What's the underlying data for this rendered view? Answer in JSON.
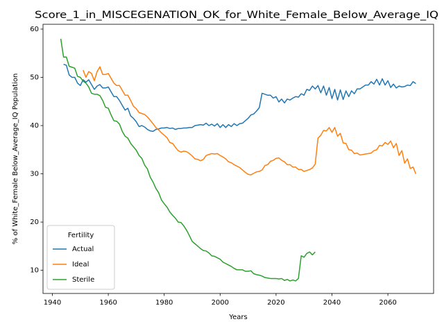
{
  "chart_data": {
    "type": "line",
    "title": "Score_1_in_MISCEGENATION_OK_for_White_Female_Below_Average_IQ",
    "x_label": "Years",
    "y_label": "% of White_Female Below_Average_IQ Population",
    "legend_title": "Fertility",
    "legend": "lower left",
    "grid": false,
    "xlim": [
      1936.65,
      2076.35
    ],
    "ylim": [
      5.2,
      61
    ],
    "xticks": [
      1940,
      1960,
      1980,
      2000,
      2020,
      2040,
      2060
    ],
    "yticks": [
      10,
      20,
      30,
      40,
      50,
      60
    ],
    "x": [
      1943,
      1944,
      1945,
      1946,
      1947,
      1948,
      1949,
      1950,
      1951,
      1952,
      1953,
      1954,
      1955,
      1956,
      1957,
      1958,
      1959,
      1960,
      1961,
      1962,
      1963,
      1964,
      1965,
      1966,
      1967,
      1968,
      1969,
      1970,
      1971,
      1972,
      1973,
      1974,
      1975,
      1976,
      1977,
      1978,
      1979,
      1980,
      1981,
      1982,
      1983,
      1984,
      1985,
      1986,
      1987,
      1988,
      1989,
      1990,
      1991,
      1992,
      1993,
      1994,
      1995,
      1996,
      1997,
      1998,
      1999,
      2000,
      2001,
      2002,
      2003,
      2004,
      2005,
      2006,
      2007,
      2008,
      2009,
      2010,
      2011,
      2012,
      2013,
      2014,
      2015,
      2016,
      2017,
      2018,
      2019,
      2020,
      2021,
      2022,
      2023,
      2024,
      2025,
      2026,
      2027,
      2028,
      2029,
      2030,
      2031,
      2032,
      2033,
      2034,
      2035,
      2036,
      2037,
      2038,
      2039,
      2040,
      2041,
      2042,
      2043,
      2044,
      2045,
      2046,
      2047,
      2048,
      2049,
      2050,
      2051,
      2052,
      2053,
      2054,
      2055,
      2056,
      2057,
      2058,
      2059,
      2060,
      2061,
      2062,
      2063,
      2064,
      2065,
      2066,
      2067,
      2068,
      2069,
      2070
    ],
    "series": [
      {
        "name": "Actual",
        "color": "#1f77b4",
        "values": [
          null,
          52.7,
          52.5,
          50.5,
          50.0,
          50.0,
          48.8,
          48.3,
          49.5,
          49.0,
          49.5,
          48.5,
          47.5,
          48.2,
          48.5,
          47.8,
          47.8,
          48.0,
          47.0,
          46.0,
          46.0,
          45.2,
          44.2,
          43.2,
          43.6,
          42.0,
          41.5,
          40.8,
          39.8,
          40.0,
          39.7,
          39.2,
          38.9,
          38.8,
          39.2,
          39.3,
          39.5,
          39.5,
          39.6,
          39.4,
          39.5,
          39.2,
          39.4,
          39.4,
          39.5,
          39.5,
          39.6,
          39.6,
          40.0,
          40.1,
          40.2,
          40.1,
          40.5,
          40.0,
          40.3,
          39.9,
          40.4,
          39.6,
          40.2,
          39.6,
          40.2,
          39.8,
          40.4,
          40.0,
          40.4,
          40.5,
          41.0,
          41.5,
          42.2,
          42.4,
          43.0,
          43.7,
          46.7,
          46.5,
          46.3,
          46.3,
          45.7,
          46.0,
          44.9,
          45.5,
          44.7,
          45.5,
          45.3,
          45.7,
          46.0,
          45.9,
          46.6,
          46.3,
          47.5,
          47.3,
          48.2,
          47.6,
          48.3,
          46.8,
          48.2,
          46.3,
          47.9,
          45.6,
          47.5,
          45.3,
          47.4,
          45.4,
          47.2,
          46.0,
          47.2,
          46.6,
          47.6,
          47.6,
          48.0,
          48.4,
          48.4,
          49.1,
          48.6,
          49.6,
          48.4,
          49.7,
          48.4,
          49.3,
          47.9,
          48.6,
          47.8,
          48.2,
          48.0,
          48.1,
          48.4,
          48.3,
          49.1,
          48.7
        ]
      },
      {
        "name": "Ideal",
        "color": "#ff7f0e",
        "values": [
          null,
          null,
          null,
          null,
          null,
          null,
          null,
          null,
          51.5,
          50.0,
          51.2,
          50.8,
          49.3,
          51.2,
          52.2,
          50.6,
          50.6,
          50.8,
          49.8,
          48.8,
          48.3,
          48.3,
          47.3,
          46.3,
          46.3,
          45.2,
          44.0,
          43.5,
          42.7,
          42.5,
          42.3,
          41.8,
          41.1,
          40.4,
          39.6,
          39.1,
          38.5,
          38.0,
          37.5,
          36.5,
          36.3,
          35.5,
          34.8,
          34.5,
          34.7,
          34.6,
          34.2,
          33.7,
          33.1,
          33.0,
          32.7,
          33.0,
          33.8,
          34.0,
          34.2,
          34.1,
          34.2,
          33.8,
          33.5,
          33.1,
          32.5,
          32.3,
          31.9,
          31.6,
          31.3,
          30.8,
          30.3,
          29.9,
          29.8,
          30.1,
          30.4,
          30.5,
          30.8,
          31.7,
          31.9,
          32.6,
          32.8,
          33.2,
          33.3,
          32.8,
          32.5,
          31.9,
          31.9,
          31.4,
          31.4,
          30.9,
          30.9,
          30.5,
          30.7,
          30.9,
          31.2,
          32.0,
          37.4,
          38.0,
          39.0,
          38.9,
          39.6,
          38.6,
          39.6,
          37.8,
          38.4,
          36.4,
          36.3,
          35.0,
          34.9,
          34.2,
          34.3,
          33.9,
          34.0,
          34.1,
          34.2,
          34.3,
          34.8,
          35.0,
          35.9,
          35.8,
          36.5,
          36.1,
          36.8,
          35.4,
          36.3,
          33.8,
          34.8,
          32.2,
          33.1,
          31.1,
          31.4,
          30.0
        ]
      },
      {
        "name": "Sterile",
        "color": "#2ca02c",
        "values": [
          58.0,
          54.2,
          54.2,
          52.3,
          52.1,
          51.9,
          50.2,
          50.0,
          49.2,
          48.8,
          48.0,
          46.7,
          46.5,
          46.5,
          46.2,
          45.2,
          43.8,
          43.6,
          42.2,
          41.0,
          40.9,
          40.3,
          38.8,
          37.8,
          37.4,
          36.3,
          35.6,
          34.9,
          33.8,
          33.2,
          31.8,
          31.0,
          29.3,
          28.3,
          27.0,
          26.1,
          24.6,
          23.8,
          23.1,
          22.1,
          21.4,
          20.8,
          20.0,
          19.9,
          19.2,
          18.3,
          17.2,
          16.0,
          15.5,
          15.0,
          14.5,
          14.1,
          14.0,
          13.6,
          13.0,
          12.9,
          12.6,
          12.3,
          11.7,
          11.4,
          11.1,
          10.8,
          10.4,
          10.1,
          10.1,
          10.1,
          9.8,
          9.8,
          9.9,
          9.3,
          9.1,
          9.0,
          8.8,
          8.5,
          8.4,
          8.3,
          8.3,
          8.3,
          8.2,
          8.3,
          7.9,
          8.1,
          7.8,
          8.0,
          7.8,
          8.3,
          13.0,
          12.7,
          13.5,
          13.8,
          13.2,
          13.8,
          null,
          null,
          null,
          null,
          null,
          null,
          null,
          null,
          null,
          null,
          null,
          null,
          null,
          null,
          null,
          null,
          null,
          null,
          null,
          null,
          null,
          null,
          null,
          null,
          null,
          null,
          null,
          null,
          null,
          null,
          null,
          null,
          null,
          null,
          null,
          null
        ]
      }
    ]
  }
}
